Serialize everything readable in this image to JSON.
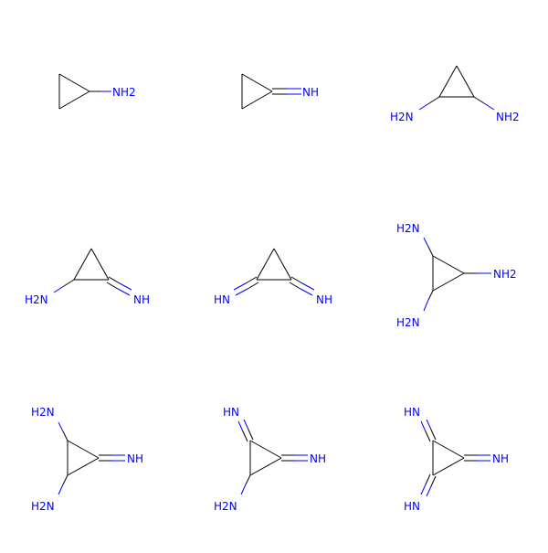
{
  "molecules": [
    {
      "labels": [
        "NH2"
      ]
    },
    {
      "labels": [
        "NH"
      ]
    },
    {
      "labels": [
        "H2N",
        "NH2"
      ]
    },
    {
      "labels": [
        "H2N",
        "NH"
      ]
    },
    {
      "labels": [
        "HN",
        "NH"
      ]
    },
    {
      "labels": [
        "H2N",
        "NH2",
        "H2N"
      ]
    },
    {
      "labels": [
        "H2N",
        "NH",
        "H2N"
      ]
    },
    {
      "labels": [
        "HN",
        "NH",
        "H2N"
      ]
    },
    {
      "labels": [
        "HN",
        "NH",
        "HN"
      ]
    }
  ],
  "colors": {
    "bond": "#000000",
    "nitrogen": "#0000ff"
  }
}
